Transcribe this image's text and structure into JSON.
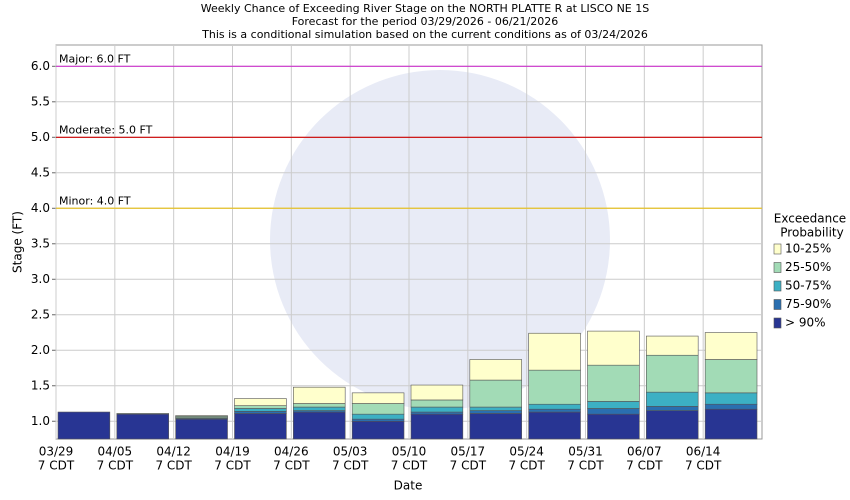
{
  "chart_data": {
    "type": "range-bar",
    "title": [
      "Weekly Chance of Exceeding River Stage on the NORTH PLATTE R at LISCO NE 1S",
      "Forecast for the period 03/29/2026 - 06/21/2026",
      "This is a conditional simulation based on the current conditions as of 03/24/2026"
    ],
    "x_label": "Date",
    "y_label": "Stage (FT)",
    "categories": [
      "03/29",
      "04/05",
      "04/12",
      "04/19",
      "04/26",
      "05/03",
      "05/10",
      "05/17",
      "05/24",
      "05/31",
      "06/07",
      "06/14"
    ],
    "category_sublabel": "7 CDT",
    "ylim": [
      0.75,
      6.3
    ],
    "yticks": [
      {
        "value": 1,
        "label": "1.0"
      },
      1.5,
      {
        "value": 2,
        "label": "2.0"
      },
      2.5,
      {
        "value": 3,
        "label": "3.0"
      },
      3.5,
      {
        "value": 4,
        "label": "4.0"
      },
      4.5,
      {
        "value": 5,
        "label": "5.0"
      },
      5.5,
      {
        "value": 6,
        "label": "6.0"
      }
    ],
    "grid": true,
    "thresholds": [
      {
        "label": "Major: 6.0 FT",
        "value": 6.0,
        "color": "#cc33cc"
      },
      {
        "label": "Moderate: 5.0 FT",
        "value": 5.0,
        "color": "#cc0000"
      },
      {
        "label": "Minor: 4.0 FT",
        "value": 4.0,
        "color": "#e6c229"
      }
    ],
    "legend_title": [
      "Exceedance",
      "Probability"
    ],
    "legend_position": "right",
    "series": [
      {
        "name": "> 90%",
        "color": "#283593",
        "values": [
          1.13,
          1.1,
          1.03,
          1.11,
          1.13,
          1.0,
          1.1,
          1.11,
          1.13,
          1.1,
          1.15,
          1.17
        ]
      },
      {
        "name": "75-90%",
        "color": "#2a6fb0",
        "values": [
          1.13,
          1.1,
          1.04,
          1.14,
          1.15,
          1.03,
          1.13,
          1.15,
          1.17,
          1.18,
          1.21,
          1.24
        ]
      },
      {
        "name": "50-75%",
        "color": "#3cb0c4",
        "values": [
          1.13,
          1.1,
          1.05,
          1.18,
          1.2,
          1.1,
          1.2,
          1.2,
          1.24,
          1.28,
          1.41,
          1.4
        ]
      },
      {
        "name": "25-50%",
        "color": "#a2dbb6",
        "values": [
          1.13,
          1.11,
          1.07,
          1.22,
          1.25,
          1.25,
          1.3,
          1.58,
          1.72,
          1.79,
          1.93,
          1.87
        ]
      },
      {
        "name": "10-25%",
        "color": "#ffffcc",
        "values": [
          1.13,
          1.11,
          1.08,
          1.32,
          1.48,
          1.4,
          1.51,
          1.87,
          2.24,
          2.27,
          2.2,
          2.25
        ]
      }
    ]
  }
}
